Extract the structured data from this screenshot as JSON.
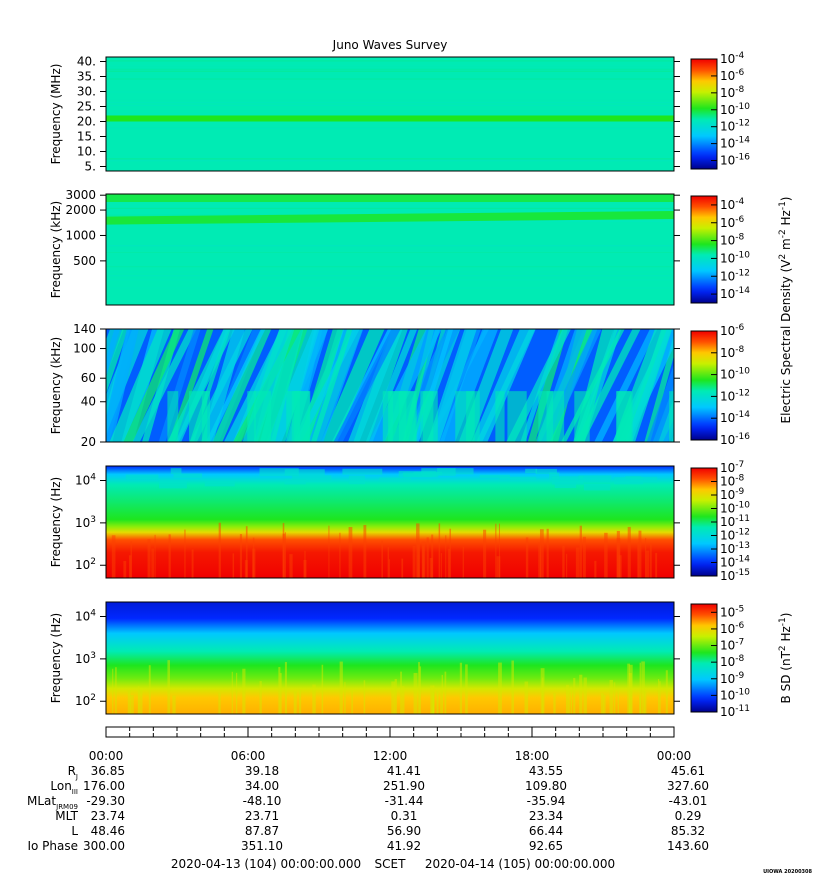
{
  "chart_data": {
    "type": "heatmap",
    "title": "Juno Waves Survey",
    "panels": [
      {
        "ylabel": "Frequency (MHz)",
        "yscale": "linear",
        "ylim": [
          3.5,
          41.5
        ],
        "yticks": [
          {
            "v": 40,
            "t": "40."
          },
          {
            "v": 35,
            "t": "35."
          },
          {
            "v": 30,
            "t": "30."
          },
          {
            "v": 25,
            "t": "25."
          },
          {
            "v": 20,
            "t": "20."
          },
          {
            "v": 15,
            "t": "15."
          },
          {
            "v": 10,
            "t": "10."
          },
          {
            "v": 5,
            "t": "5."
          }
        ],
        "colorbar": {
          "exp_min": -17,
          "exp_max": -4,
          "labels": [
            {
              "v": -4,
              "t": "-4"
            },
            {
              "v": -6,
              "t": "-6"
            },
            {
              "v": -8,
              "t": "-8"
            },
            {
              "v": -10,
              "t": "-10"
            },
            {
              "v": -12,
              "t": "-12"
            },
            {
              "v": -14,
              "t": "-14"
            },
            {
              "v": -16,
              "t": "-16"
            }
          ]
        },
        "field_level": 0.45,
        "pattern": "band"
      },
      {
        "ylabel": "Frequency (kHz)",
        "yscale": "log",
        "ylim": [
          150,
          3100
        ],
        "yticks": [
          {
            "v": 3000,
            "t": "3000"
          },
          {
            "v": 2000,
            "t": "2000"
          },
          {
            "v": 1000,
            "t": "1000"
          },
          {
            "v": 500,
            "t": "500"
          }
        ],
        "colorbar": {
          "exp_min": -15,
          "exp_max": -3,
          "labels": [
            {
              "v": -4,
              "t": "-4"
            },
            {
              "v": -6,
              "t": "-6"
            },
            {
              "v": -8,
              "t": "-8"
            },
            {
              "v": -10,
              "t": "-10"
            },
            {
              "v": -12,
              "t": "-12"
            },
            {
              "v": -14,
              "t": "-14"
            }
          ]
        },
        "field_level": 0.45,
        "pattern": "band"
      },
      {
        "ylabel": "Frequency (kHz)",
        "yscale": "log",
        "ylim": [
          20,
          140
        ],
        "yticks": [
          {
            "v": 140,
            "t": "140"
          },
          {
            "v": 100,
            "t": "100"
          },
          {
            "v": 60,
            "t": "60"
          },
          {
            "v": 40,
            "t": "40"
          },
          {
            "v": 20,
            "t": "20"
          }
        ],
        "colorbar": {
          "exp_min": -16,
          "exp_max": -6,
          "labels": [
            {
              "v": -6,
              "t": "-6"
            },
            {
              "v": -8,
              "t": "-8"
            },
            {
              "v": -10,
              "t": "-10"
            },
            {
              "v": -12,
              "t": "-12"
            },
            {
              "v": -14,
              "t": "-14"
            },
            {
              "v": -16,
              "t": "-16"
            }
          ]
        },
        "field_level": 0.28,
        "pattern": "streaks"
      },
      {
        "ylabel": "Frequency (Hz)",
        "yscale": "log",
        "ylim": [
          50,
          22000
        ],
        "yticks": [
          {
            "v": 10000,
            "t": "10",
            "e": "4"
          },
          {
            "v": 1000,
            "t": "10",
            "e": "3"
          },
          {
            "v": 100,
            "t": "10",
            "e": "2"
          }
        ],
        "colorbar": {
          "exp_min": -15,
          "exp_max": -7,
          "labels": [
            {
              "v": -7,
              "t": "-7"
            },
            {
              "v": -8,
              "t": "-8"
            },
            {
              "v": -9,
              "t": "-9"
            },
            {
              "v": -10,
              "t": "-10"
            },
            {
              "v": -11,
              "t": "-11"
            },
            {
              "v": -12,
              "t": "-12"
            },
            {
              "v": -13,
              "t": "-13"
            },
            {
              "v": -14,
              "t": "-14"
            },
            {
              "v": -15,
              "t": "-15"
            }
          ]
        },
        "pattern": "gradient-e"
      },
      {
        "ylabel": "Frequency (Hz)",
        "yscale": "log",
        "ylim": [
          50,
          22000
        ],
        "yticks": [
          {
            "v": 10000,
            "t": "10",
            "e": "4"
          },
          {
            "v": 1000,
            "t": "10",
            "e": "3"
          },
          {
            "v": 100,
            "t": "10",
            "e": "2"
          }
        ],
        "colorbar": {
          "exp_min": -11,
          "exp_max": -4.5,
          "labels": [
            {
              "v": -5,
              "t": "-5"
            },
            {
              "v": -6,
              "t": "-6"
            },
            {
              "v": -7,
              "t": "-7"
            },
            {
              "v": -8,
              "t": "-8"
            },
            {
              "v": -9,
              "t": "-9"
            },
            {
              "v": -10,
              "t": "-10"
            },
            {
              "v": -11,
              "t": "-11"
            }
          ]
        },
        "pattern": "gradient-b"
      }
    ],
    "colorbar_labels": {
      "electric_main": "Electric Spectral Density (V",
      "electric_mid": " m",
      "electric_end": " Hz",
      "electric_close": ")",
      "bsd_main": "B SD (nT",
      "bsd_end": " Hz",
      "bsd_close": ")",
      "sup2": "2",
      "supm2": "-2",
      "supm1": "-1"
    },
    "colorbar_base": "10",
    "time_axis": {
      "ticks": [
        "00:00",
        "06:00",
        "12:00",
        "18:00",
        "00:00"
      ],
      "rows": [
        {
          "label": "R",
          "sub": "J",
          "values": [
            "36.85",
            "39.18",
            "41.41",
            "43.55",
            "45.61"
          ]
        },
        {
          "label": "Lon",
          "sub": "III",
          "values": [
            "176.00",
            "34.00",
            "251.90",
            "109.80",
            "327.60"
          ]
        },
        {
          "label": "MLat",
          "sub": "JRM09",
          "values": [
            "-29.30",
            "-48.10",
            "-31.44",
            "-35.94",
            "-43.01"
          ]
        },
        {
          "label": "MLT",
          "sub": "",
          "values": [
            "23.74",
            "23.71",
            "0.31",
            "23.34",
            "0.29"
          ]
        },
        {
          "label": "L",
          "sub": "",
          "values": [
            "48.46",
            "87.87",
            "56.90",
            "66.44",
            "85.32"
          ]
        },
        {
          "label": "Io Phase",
          "sub": "",
          "values": [
            "300.00",
            "351.10",
            "41.92",
            "92.65",
            "143.60"
          ]
        }
      ],
      "footer_left": "2020-04-13 (104) 00:00:00.000",
      "footer_mid": "SCET",
      "footer_right": "2020-04-14 (105) 00:00:00.000"
    },
    "stamp": "UIOWA 20200308",
    "grid": false,
    "legend": "colorbars-right"
  }
}
